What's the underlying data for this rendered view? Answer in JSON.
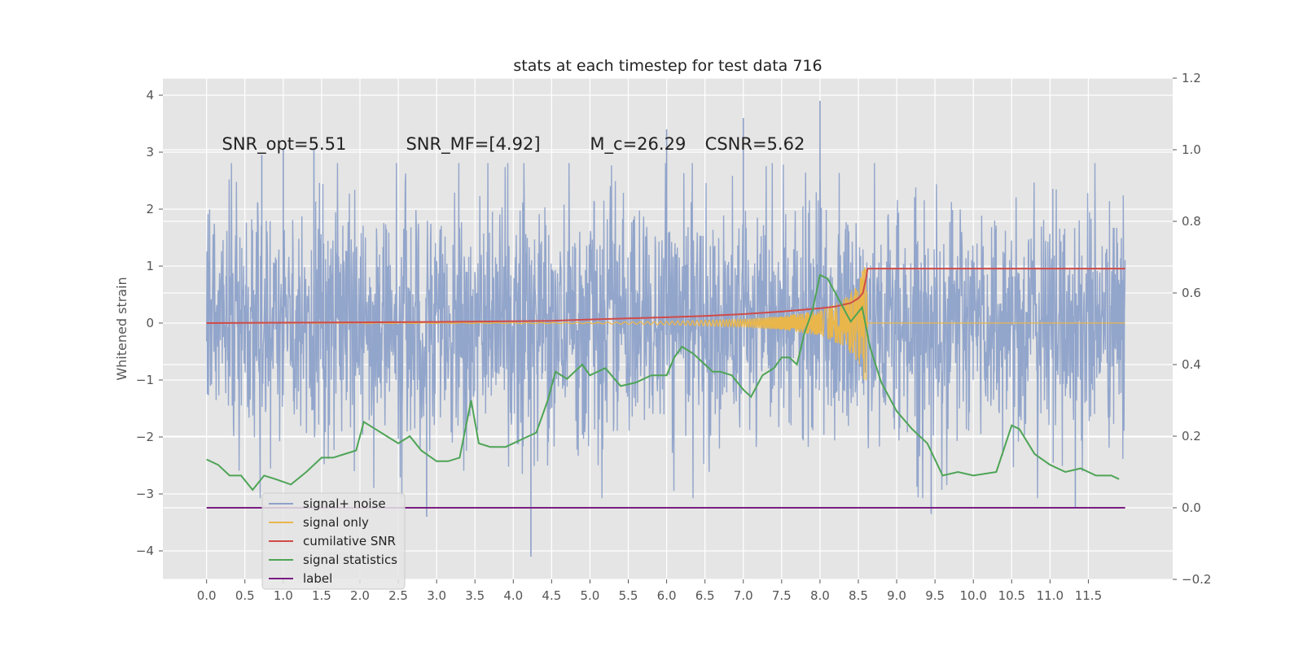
{
  "chart_data": {
    "type": "line",
    "title": "stats at each timestep for test data 716",
    "ylabel": "Whitened strain",
    "xlabel": "",
    "xlim": [
      -0.57,
      12.6
    ],
    "ylim": [
      -4.5,
      4.3
    ],
    "ylim_right": [
      -0.2,
      1.2
    ],
    "x_ticks": [
      "0.0",
      "0.5",
      "1.0",
      "1.5",
      "2.0",
      "2.5",
      "3.0",
      "3.5",
      "4.0",
      "4.5",
      "5.0",
      "5.5",
      "6.0",
      "6.5",
      "7.0",
      "7.5",
      "8.0",
      "8.5",
      "9.0",
      "9.5",
      "10.0",
      "10.5",
      "11.0",
      "11.5"
    ],
    "y_ticks": [
      "4",
      "3",
      "2",
      "1",
      "0",
      "−1",
      "−2",
      "−3",
      "−4"
    ],
    "y_ticks_right": [
      "1.2",
      "1.0",
      "0.8",
      "0.6",
      "0.4",
      "0.2",
      "0.0",
      "−0.2"
    ],
    "grid": true,
    "legend_position": "lower-left",
    "annotations": [
      {
        "text": "SNR_opt=5.51",
        "x": 0.2,
        "y": 3.1
      },
      {
        "text": "SNR_MF=[4.92]",
        "x": 2.6,
        "y": 3.1
      },
      {
        "text": "M_c=26.29",
        "x": 5.0,
        "y": 3.1
      },
      {
        "text": "CSNR=5.62",
        "x": 6.5,
        "y": 3.1
      }
    ],
    "series": [
      {
        "name": "signal+ noise",
        "color": "#8da1c9",
        "axis": "left",
        "description_range": [
          0.0,
          11.98
        ],
        "amplitude": 1.15,
        "envelope_top": 3.9,
        "envelope_bottom": -4.1,
        "spikes": [
          {
            "x": 0.72,
            "y": 2.95
          },
          {
            "x": 1.0,
            "y": 3.05
          },
          {
            "x": 1.4,
            "y": 3.05
          },
          {
            "x": 2.87,
            "y": -3.4
          },
          {
            "x": 4.23,
            "y": -4.1
          },
          {
            "x": 6.0,
            "y": 3.4
          },
          {
            "x": 7.0,
            "y": 3.6
          },
          {
            "x": 8.0,
            "y": 3.9
          },
          {
            "x": 9.45,
            "y": -3.35
          },
          {
            "x": 11.33,
            "y": -3.25
          }
        ]
      },
      {
        "name": "signal only",
        "color": "#e9b64c",
        "axis": "left",
        "x": [
          0,
          5.0,
          6.0,
          7.0,
          7.5,
          8.0,
          8.3,
          8.5,
          8.6,
          8.62,
          11.98
        ],
        "amplitude": [
          0,
          0.01,
          0.03,
          0.07,
          0.12,
          0.22,
          0.4,
          0.7,
          1.1,
          0,
          0
        ]
      },
      {
        "name": "cumilative SNR",
        "color": "#d04b48",
        "axis": "right",
        "x": [
          0,
          1.0,
          2.0,
          3.0,
          4.0,
          4.5,
          5.0,
          5.5,
          6.0,
          6.5,
          7.0,
          7.5,
          8.0,
          8.2,
          8.4,
          8.5,
          8.56,
          8.6,
          8.62,
          11.98
        ],
        "y": [
          0.516,
          0.517,
          0.518,
          0.519,
          0.521,
          0.522,
          0.526,
          0.529,
          0.532,
          0.536,
          0.541,
          0.548,
          0.557,
          0.562,
          0.572,
          0.585,
          0.6,
          0.64,
          0.668,
          0.668
        ]
      },
      {
        "name": "signal statistics",
        "color": "#4ea456",
        "axis": "right",
        "x": [
          0,
          0.15,
          0.3,
          0.45,
          0.6,
          0.75,
          0.9,
          1.1,
          1.3,
          1.5,
          1.65,
          1.8,
          1.95,
          2.05,
          2.2,
          2.35,
          2.5,
          2.65,
          2.8,
          3.0,
          3.15,
          3.3,
          3.45,
          3.55,
          3.7,
          3.9,
          4.1,
          4.3,
          4.45,
          4.55,
          4.7,
          4.9,
          5.0,
          5.2,
          5.4,
          5.6,
          5.8,
          6.0,
          6.1,
          6.2,
          6.35,
          6.5,
          6.6,
          6.7,
          6.85,
          7.0,
          7.1,
          7.25,
          7.4,
          7.5,
          7.6,
          7.7,
          7.8,
          7.9,
          8.0,
          8.1,
          8.25,
          8.4,
          8.55,
          8.65,
          8.8,
          9.0,
          9.2,
          9.4,
          9.6,
          9.8,
          10.0,
          10.3,
          10.5,
          10.6,
          10.8,
          11.0,
          11.2,
          11.4,
          11.6,
          11.8,
          11.9
        ],
        "y": [
          0.135,
          0.12,
          0.09,
          0.09,
          0.05,
          0.09,
          0.08,
          0.065,
          0.1,
          0.14,
          0.14,
          0.15,
          0.16,
          0.24,
          0.22,
          0.2,
          0.18,
          0.2,
          0.16,
          0.13,
          0.13,
          0.14,
          0.3,
          0.18,
          0.17,
          0.17,
          0.19,
          0.21,
          0.3,
          0.38,
          0.36,
          0.4,
          0.37,
          0.39,
          0.34,
          0.35,
          0.37,
          0.37,
          0.42,
          0.45,
          0.43,
          0.4,
          0.38,
          0.38,
          0.37,
          0.33,
          0.31,
          0.37,
          0.39,
          0.42,
          0.42,
          0.4,
          0.49,
          0.55,
          0.65,
          0.64,
          0.58,
          0.52,
          0.56,
          0.45,
          0.35,
          0.27,
          0.22,
          0.18,
          0.09,
          0.1,
          0.09,
          0.1,
          0.23,
          0.22,
          0.15,
          0.12,
          0.1,
          0.11,
          0.09,
          0.09,
          0.08
        ]
      },
      {
        "name": "label",
        "color": "#7a1d82",
        "axis": "right",
        "x": [
          0,
          11.98
        ],
        "y": [
          0,
          0
        ]
      }
    ],
    "legend": [
      {
        "label": "signal+ noise",
        "color": "#8da1c9"
      },
      {
        "label": "signal only",
        "color": "#e9b64c"
      },
      {
        "label": "cumilative SNR",
        "color": "#d04b48"
      },
      {
        "label": "signal statistics",
        "color": "#4ea456"
      },
      {
        "label": "label",
        "color": "#7a1d82"
      }
    ]
  }
}
